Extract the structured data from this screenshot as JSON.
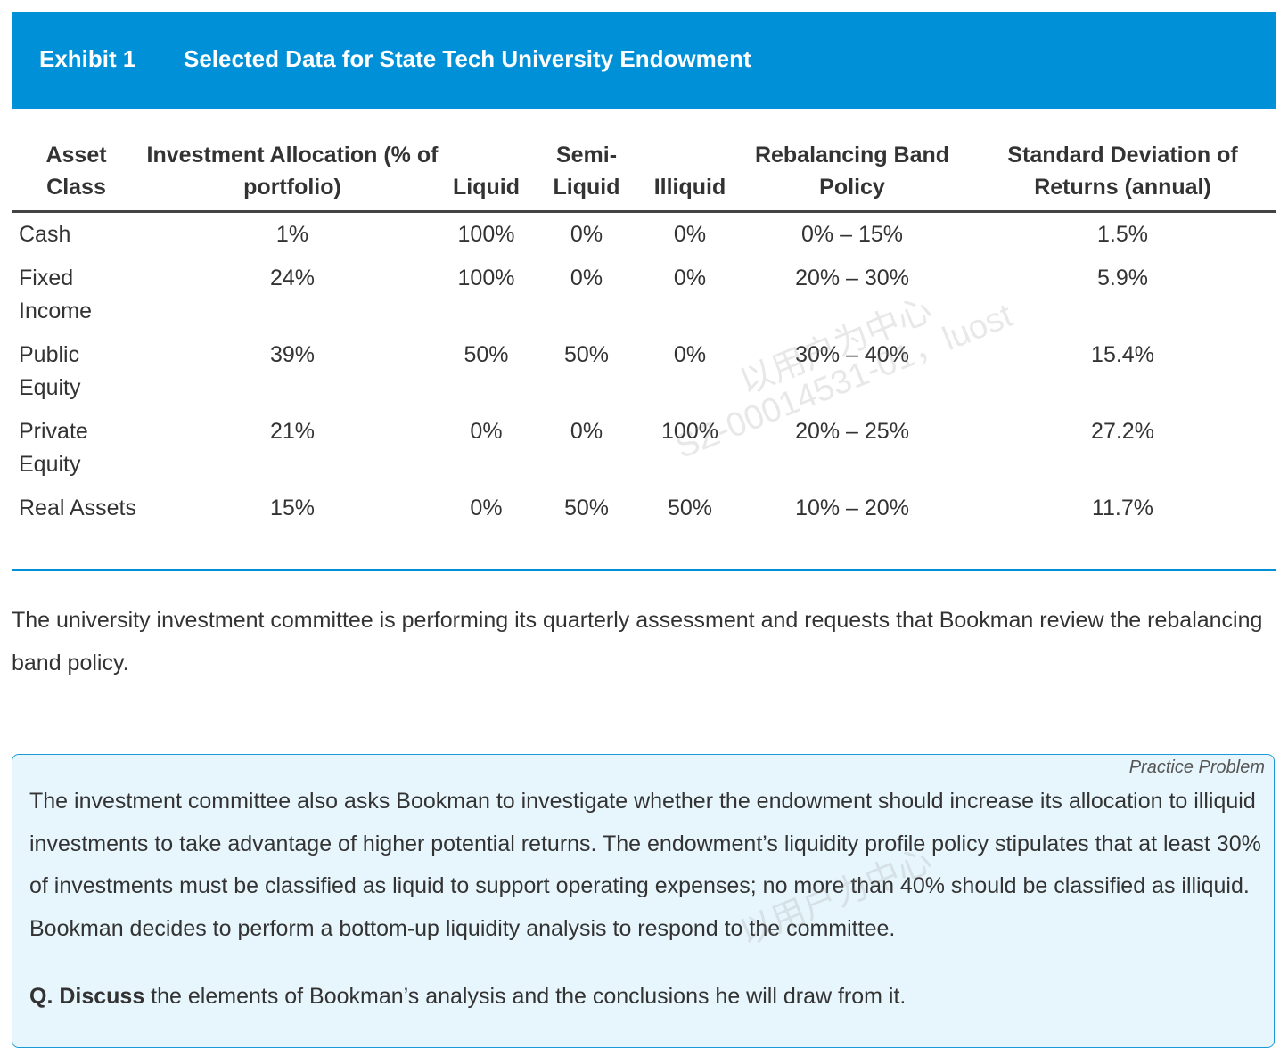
{
  "header": {
    "exhibit_label": "Exhibit 1",
    "title": "Selected Data for State Tech University Endowment",
    "bg_color": "#0090d8"
  },
  "table": {
    "columns": [
      "Asset Class",
      "Investment Allocation (% of portfolio)",
      "Liquid",
      "Semi-Liquid",
      "Illiquid",
      "Rebalancing Band Policy",
      "Standard Deviation of Returns (annual)"
    ],
    "rows": [
      [
        "Cash",
        "1%",
        "100%",
        "0%",
        "0%",
        "0% – 15%",
        "1.5%"
      ],
      [
        "Fixed Income",
        "24%",
        "100%",
        "0%",
        "0%",
        "20% – 30%",
        "5.9%"
      ],
      [
        "Public Equity",
        "39%",
        "50%",
        "50%",
        "0%",
        "30% – 40%",
        "15.4%"
      ],
      [
        "Private Equity",
        "21%",
        "0%",
        "0%",
        "100%",
        "20% – 25%",
        "27.2%"
      ],
      [
        "Real Assets",
        "15%",
        "0%",
        "50%",
        "50%",
        "10% – 20%",
        "11.7%"
      ]
    ]
  },
  "intro_text": "The university investment committee is performing its quarterly assessment and requests that Bookman review the rebalancing band policy.",
  "practice": {
    "tag": "Practice Problem",
    "body": "The investment committee also asks Bookman to investigate whether the endowment should increase its allocation to illiquid investments to take advantage of higher potential returns. The endowment’s liquidity profile policy stipulates that at least 30% of investments must be classified as liquid to support operating expenses; no more than 40% should be classified as illiquid. Bookman decides to perform a bottom-up liquidity analysis to respond to the committee.",
    "question_prefix": "Q. Discuss",
    "question_rest": " the elements of Bookman’s analysis and the conclusions he will draw from it."
  },
  "watermark": {
    "line1": "以用户为中心",
    "line2": "SZ-00014531-01，luost"
  }
}
